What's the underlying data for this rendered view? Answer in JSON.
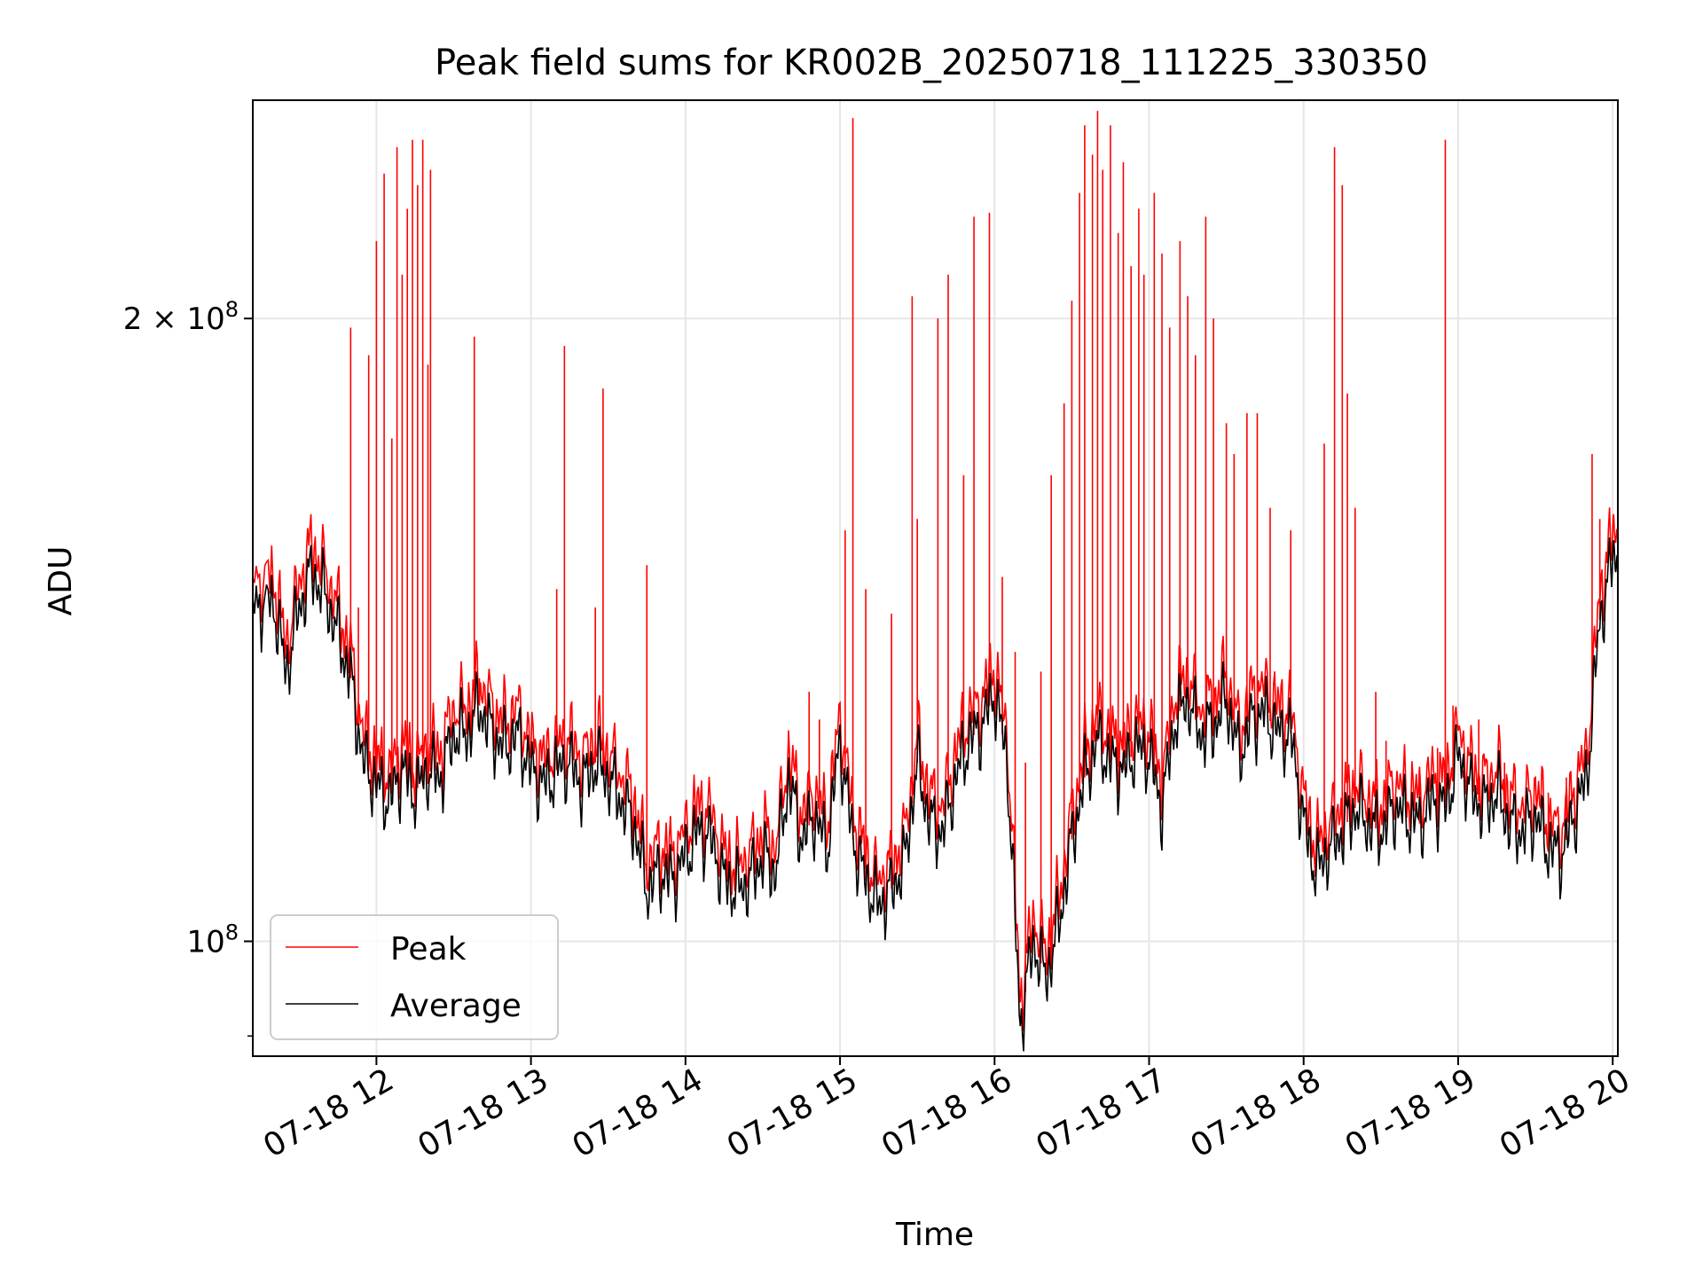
{
  "chart_data": {
    "type": "line",
    "title": "Peak field sums for KR002B_20250718_111225_330350",
    "xlabel": "Time",
    "ylabel": "ADU",
    "yscale": "log",
    "ylim": [
      88000000,
      255000000
    ],
    "xlim": [
      "07-18 11:12",
      "07-18 20:02"
    ],
    "x_ticks": [
      "07-18 12",
      "07-18 13",
      "07-18 14",
      "07-18 15",
      "07-18 16",
      "07-18 17",
      "07-18 18",
      "07-18 19",
      "07-18 20"
    ],
    "y_ticks": [
      {
        "value": 200000000,
        "base": "2 × 10",
        "exp": "8"
      },
      {
        "value": 100000000,
        "base": "10",
        "exp": "8"
      }
    ],
    "grid": true,
    "legend_position": "lower-left",
    "colors": {
      "peak": "#ff0000",
      "average": "#000000"
    },
    "series": [
      {
        "name": "Average",
        "x": [
          "11:12",
          "11:20",
          "11:25",
          "11:30",
          "11:35",
          "11:40",
          "11:45",
          "11:50",
          "11:55",
          "12:00",
          "12:05",
          "12:10",
          "12:15",
          "12:20",
          "12:25",
          "12:30",
          "12:35",
          "12:40",
          "12:45",
          "12:50",
          "12:55",
          "13:00",
          "13:05",
          "13:10",
          "13:15",
          "13:20",
          "13:25",
          "13:30",
          "13:35",
          "13:40",
          "13:45",
          "13:50",
          "13:55",
          "14:00",
          "14:05",
          "14:10",
          "14:15",
          "14:20",
          "14:25",
          "14:30",
          "14:35",
          "14:40",
          "14:45",
          "14:50",
          "14:55",
          "15:00",
          "15:05",
          "15:10",
          "15:15",
          "15:20",
          "15:25",
          "15:30",
          "15:35",
          "15:40",
          "15:45",
          "15:50",
          "15:55",
          "16:00",
          "16:05",
          "16:10",
          "16:15",
          "16:20",
          "16:25",
          "16:30",
          "16:35",
          "16:40",
          "16:45",
          "16:50",
          "16:55",
          "17:00",
          "17:05",
          "17:10",
          "17:15",
          "17:20",
          "17:25",
          "17:30",
          "17:35",
          "17:40",
          "17:45",
          "17:50",
          "17:55",
          "18:00",
          "18:05",
          "18:10",
          "18:15",
          "18:20",
          "18:25",
          "18:30",
          "18:35",
          "18:40",
          "18:45",
          "18:50",
          "18:55",
          "19:00",
          "19:05",
          "19:10",
          "19:15",
          "19:20",
          "19:25",
          "19:30",
          "19:35",
          "19:40",
          "19:45",
          "19:50",
          "19:55",
          "20:00",
          "20:02"
        ],
        "values": [
          145000000,
          146000000,
          135000000,
          145000000,
          151000000,
          147000000,
          141000000,
          134000000,
          122000000,
          119000000,
          117000000,
          121000000,
          118000000,
          121000000,
          120000000,
          126000000,
          126000000,
          130000000,
          126000000,
          124000000,
          126000000,
          121000000,
          119000000,
          121000000,
          122000000,
          119000000,
          122000000,
          120000000,
          117000000,
          114000000,
          106000000,
          108000000,
          107000000,
          110000000,
          113000000,
          112000000,
          107000000,
          106000000,
          107000000,
          110000000,
          108000000,
          120000000,
          112000000,
          115000000,
          111000000,
          125000000,
          112000000,
          107000000,
          104000000,
          106000000,
          109000000,
          122000000,
          114000000,
          113000000,
          120000000,
          125000000,
          127000000,
          132000000,
          122000000,
          91000000,
          100000000,
          96000000,
          102000000,
          112000000,
          120000000,
          125000000,
          122000000,
          121000000,
          124000000,
          123000000,
          116000000,
          128000000,
          131000000,
          126000000,
          127000000,
          131000000,
          123000000,
          128000000,
          129000000,
          126000000,
          126000000,
          114000000,
          108000000,
          111000000,
          113000000,
          116000000,
          114000000,
          113000000,
          116000000,
          115000000,
          114000000,
          117000000,
          116000000,
          123000000,
          118000000,
          116000000,
          118000000,
          114000000,
          113000000,
          115000000,
          111000000,
          110000000,
          115000000,
          120000000,
          143000000,
          153000000,
          154000000
        ]
      },
      {
        "name": "Peak",
        "spikes": [
          {
            "x": "11:50",
            "value": 198000000
          },
          {
            "x": "11:53",
            "value": 145000000
          },
          {
            "x": "11:57",
            "value": 192000000
          },
          {
            "x": "12:00",
            "value": 218000000
          },
          {
            "x": "12:03",
            "value": 235000000
          },
          {
            "x": "12:06",
            "value": 175000000
          },
          {
            "x": "12:08",
            "value": 242000000
          },
          {
            "x": "12:10",
            "value": 210000000
          },
          {
            "x": "12:12",
            "value": 226000000
          },
          {
            "x": "12:14",
            "value": 244000000
          },
          {
            "x": "12:16",
            "value": 232000000
          },
          {
            "x": "12:18",
            "value": 244000000
          },
          {
            "x": "12:20",
            "value": 190000000
          },
          {
            "x": "12:21",
            "value": 236000000
          },
          {
            "x": "12:38",
            "value": 196000000
          },
          {
            "x": "12:40",
            "value": 134000000
          },
          {
            "x": "13:10",
            "value": 148000000
          },
          {
            "x": "13:13",
            "value": 194000000
          },
          {
            "x": "13:25",
            "value": 145000000
          },
          {
            "x": "13:28",
            "value": 185000000
          },
          {
            "x": "13:45",
            "value": 152000000
          },
          {
            "x": "14:48",
            "value": 132000000
          },
          {
            "x": "14:52",
            "value": 128000000
          },
          {
            "x": "15:02",
            "value": 158000000
          },
          {
            "x": "15:05",
            "value": 250000000
          },
          {
            "x": "15:10",
            "value": 148000000
          },
          {
            "x": "15:20",
            "value": 144000000
          },
          {
            "x": "15:28",
            "value": 205000000
          },
          {
            "x": "15:30",
            "value": 160000000
          },
          {
            "x": "15:38",
            "value": 200000000
          },
          {
            "x": "15:42",
            "value": 210000000
          },
          {
            "x": "15:48",
            "value": 168000000
          },
          {
            "x": "15:52",
            "value": 224000000
          },
          {
            "x": "15:58",
            "value": 225000000
          },
          {
            "x": "16:03",
            "value": 150000000
          },
          {
            "x": "16:08",
            "value": 138000000
          },
          {
            "x": "16:12",
            "value": 122000000
          },
          {
            "x": "16:18",
            "value": 135000000
          },
          {
            "x": "16:22",
            "value": 168000000
          },
          {
            "x": "16:27",
            "value": 182000000
          },
          {
            "x": "16:30",
            "value": 204000000
          },
          {
            "x": "16:33",
            "value": 230000000
          },
          {
            "x": "16:35",
            "value": 248000000
          },
          {
            "x": "16:38",
            "value": 240000000
          },
          {
            "x": "16:40",
            "value": 252000000
          },
          {
            "x": "16:42",
            "value": 236000000
          },
          {
            "x": "16:45",
            "value": 248000000
          },
          {
            "x": "16:48",
            "value": 220000000
          },
          {
            "x": "16:50",
            "value": 238000000
          },
          {
            "x": "16:53",
            "value": 212000000
          },
          {
            "x": "16:56",
            "value": 226000000
          },
          {
            "x": "16:58",
            "value": 210000000
          },
          {
            "x": "17:02",
            "value": 230000000
          },
          {
            "x": "17:05",
            "value": 215000000
          },
          {
            "x": "17:08",
            "value": 198000000
          },
          {
            "x": "17:12",
            "value": 218000000
          },
          {
            "x": "17:15",
            "value": 205000000
          },
          {
            "x": "17:18",
            "value": 192000000
          },
          {
            "x": "17:22",
            "value": 224000000
          },
          {
            "x": "17:25",
            "value": 200000000
          },
          {
            "x": "17:30",
            "value": 178000000
          },
          {
            "x": "17:33",
            "value": 172000000
          },
          {
            "x": "17:38",
            "value": 180000000
          },
          {
            "x": "17:42",
            "value": 180000000
          },
          {
            "x": "17:47",
            "value": 162000000
          },
          {
            "x": "17:55",
            "value": 158000000
          },
          {
            "x": "18:08",
            "value": 174000000
          },
          {
            "x": "18:12",
            "value": 242000000
          },
          {
            "x": "18:15",
            "value": 232000000
          },
          {
            "x": "18:17",
            "value": 184000000
          },
          {
            "x": "18:20",
            "value": 162000000
          },
          {
            "x": "18:28",
            "value": 132000000
          },
          {
            "x": "18:32",
            "value": 125000000
          },
          {
            "x": "18:45",
            "value": 120000000
          },
          {
            "x": "18:52",
            "value": 124000000
          },
          {
            "x": "18:55",
            "value": 244000000
          },
          {
            "x": "18:58",
            "value": 130000000
          },
          {
            "x": "19:02",
            "value": 120000000
          },
          {
            "x": "19:08",
            "value": 128000000
          },
          {
            "x": "19:18",
            "value": 122000000
          },
          {
            "x": "19:35",
            "value": 118000000
          },
          {
            "x": "19:42",
            "value": 120000000
          },
          {
            "x": "19:52",
            "value": 172000000
          },
          {
            "x": "19:55",
            "value": 160000000
          }
        ]
      }
    ]
  }
}
